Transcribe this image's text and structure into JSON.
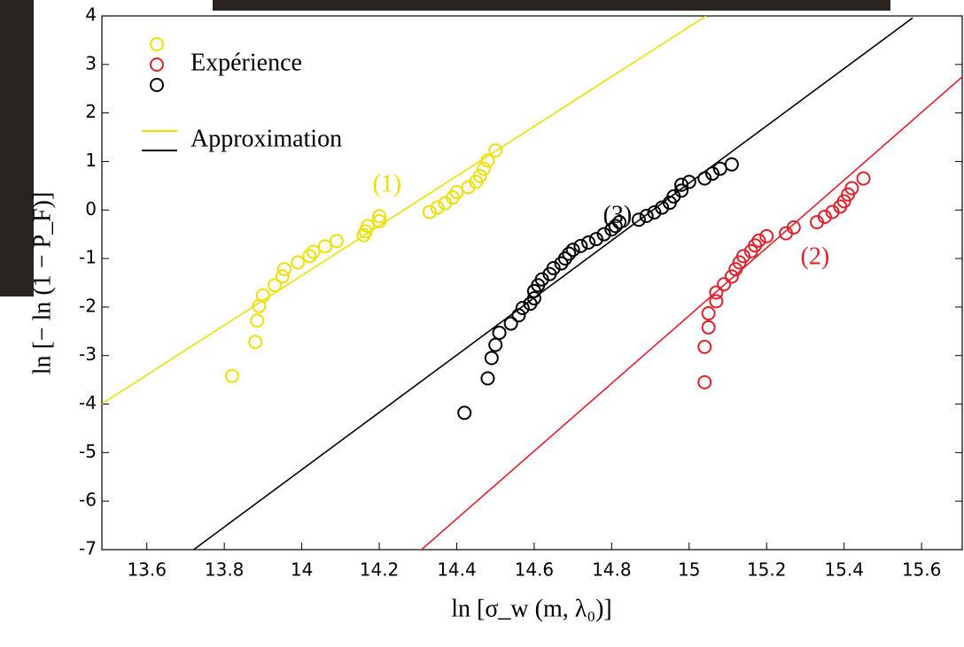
{
  "chart_data": {
    "type": "scatter",
    "x_label": "ln [σ_w (m, λ₀)]",
    "y_label": "ln [− ln (1 − P_F)]",
    "xlim": [
      13.484,
      15.705
    ],
    "ylim": [
      -7,
      4
    ],
    "xticks": [
      13.6,
      13.8,
      14,
      14.2,
      14.4,
      14.6,
      14.8,
      15,
      15.2,
      15.4,
      15.6
    ],
    "yticks": [
      -7,
      -6,
      -5,
      -4,
      -3,
      -2,
      -1,
      0,
      1,
      2,
      3,
      4
    ],
    "series": [
      {
        "mode": "markers",
        "color": "#ece000",
        "x": [
          13.82,
          13.88,
          13.885,
          13.89,
          13.9,
          13.93,
          13.95,
          13.955,
          13.99,
          14.02,
          14.03,
          14.06,
          14.09,
          14.16,
          14.165,
          14.17,
          14.2,
          14.2,
          14.33,
          14.35,
          14.37,
          14.39,
          14.4,
          14.43,
          14.45,
          14.46,
          14.47,
          14.48,
          14.5
        ],
        "values": [
          -3.42,
          -2.72,
          -2.28,
          -1.98,
          -1.76,
          -1.55,
          -1.37,
          -1.22,
          -1.08,
          -0.95,
          -0.86,
          -0.75,
          -0.64,
          -0.52,
          -0.44,
          -0.33,
          -0.23,
          -0.13,
          -0.04,
          0.05,
          0.14,
          0.26,
          0.37,
          0.47,
          0.58,
          0.7,
          0.85,
          1.02,
          1.23
        ]
      },
      {
        "mode": "markers",
        "color": "#000000",
        "x": [
          14.42,
          14.48,
          14.49,
          14.5,
          14.51,
          14.54,
          14.56,
          14.57,
          14.59,
          14.6,
          14.6,
          14.61,
          14.62,
          14.64,
          14.65,
          14.67,
          14.68,
          14.69,
          14.7,
          14.72,
          14.74,
          14.76,
          14.78,
          14.8,
          14.81,
          14.82,
          14.87,
          14.89,
          14.91,
          14.93,
          14.95,
          14.96,
          14.98,
          14.98,
          15.0,
          15.04,
          15.06,
          15.08,
          15.11
        ],
        "values": [
          -4.18,
          -3.47,
          -3.05,
          -2.78,
          -2.53,
          -2.34,
          -2.17,
          -2.02,
          -1.93,
          -1.82,
          -1.67,
          -1.55,
          -1.43,
          -1.32,
          -1.2,
          -1.1,
          -1.0,
          -0.9,
          -0.82,
          -0.74,
          -0.67,
          -0.6,
          -0.5,
          -0.4,
          -0.33,
          -0.25,
          -0.2,
          -0.12,
          -0.05,
          0.05,
          0.15,
          0.28,
          0.4,
          0.52,
          0.58,
          0.65,
          0.75,
          0.85,
          0.94
        ]
      },
      {
        "mode": "markers",
        "color": "#e0202a",
        "x": [
          15.04,
          15.04,
          15.05,
          15.05,
          15.07,
          15.07,
          15.09,
          15.11,
          15.12,
          15.13,
          15.14,
          15.16,
          15.17,
          15.18,
          15.2,
          15.25,
          15.27,
          15.33,
          15.35,
          15.37,
          15.39,
          15.4,
          15.41,
          15.42,
          15.45
        ],
        "values": [
          -3.55,
          -2.82,
          -2.42,
          -2.13,
          -1.88,
          -1.7,
          -1.53,
          -1.37,
          -1.22,
          -1.08,
          -0.95,
          -0.85,
          -0.73,
          -0.63,
          -0.54,
          -0.48,
          -0.36,
          -0.25,
          -0.14,
          -0.04,
          0.07,
          0.18,
          0.32,
          0.45,
          0.65
        ]
      },
      {
        "mode": "line",
        "color": "#ece000",
        "x": [
          13.483,
          15.044
        ],
        "values": [
          -4,
          4
        ]
      },
      {
        "mode": "line",
        "color": "#000000",
        "x": [
          13.721,
          15.577
        ],
        "values": [
          -7,
          3.96
        ]
      },
      {
        "mode": "line",
        "color": "#e0202a",
        "x": [
          14.309,
          15.71
        ],
        "values": [
          -7,
          2.78
        ]
      }
    ],
    "legend": [
      {
        "label": "Expérience",
        "mode": "markers",
        "colors": [
          "#ece000",
          "#e0202a",
          "#000000"
        ]
      },
      {
        "label": "Approximation",
        "mode": "line",
        "colors": [
          "#ece000",
          "#e0202a",
          "#000000"
        ]
      }
    ],
    "annotations": [
      {
        "text": "(1)",
        "x": 14.22,
        "y": 0.5,
        "color": "#ece000"
      },
      {
        "text": "(3)",
        "x": 14.815,
        "y": -0.14,
        "color": "#000000"
      },
      {
        "text": "(2)",
        "x": 15.325,
        "y": -1.0,
        "color": "#e0202a"
      }
    ]
  }
}
